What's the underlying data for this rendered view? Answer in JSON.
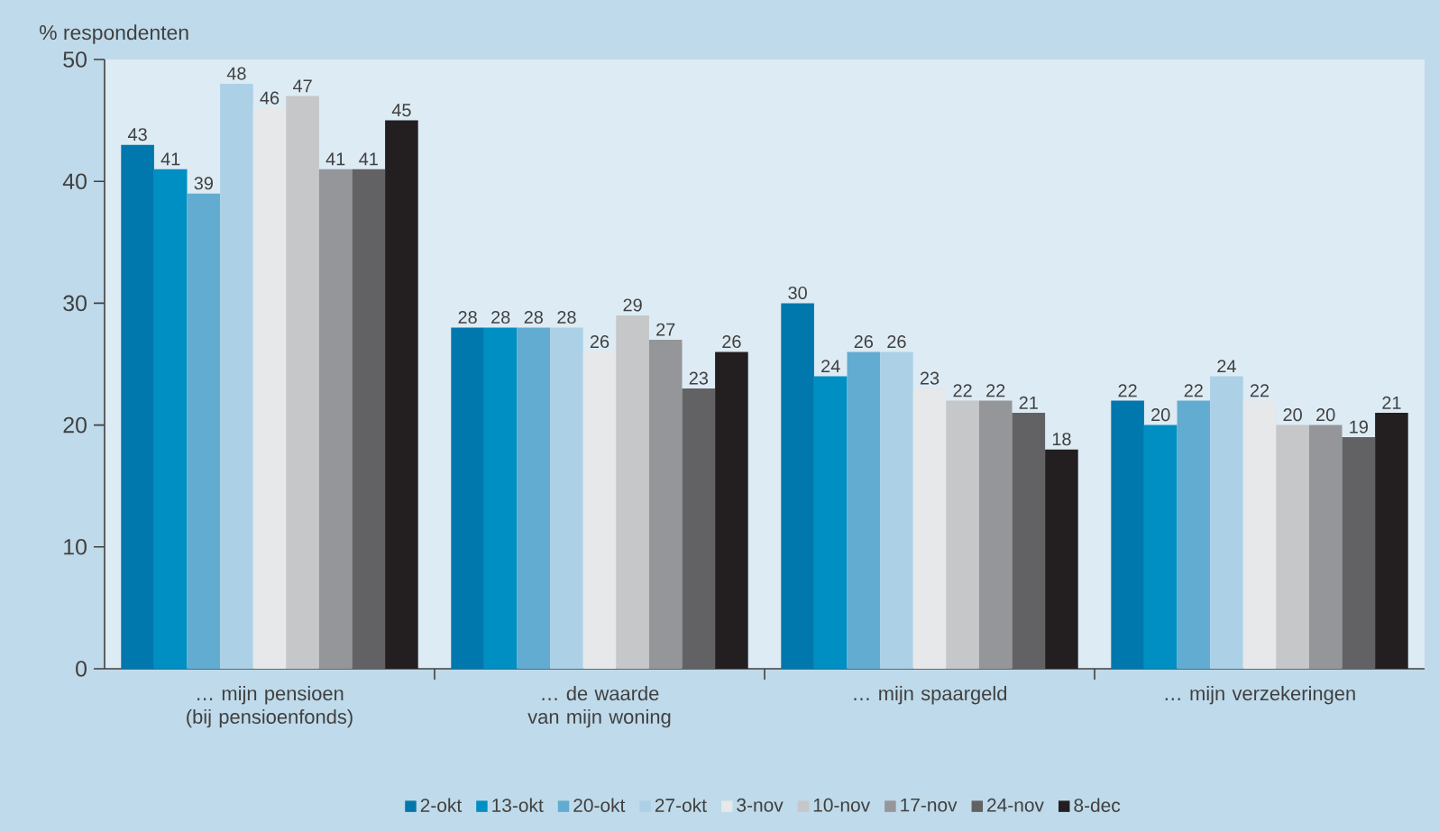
{
  "chart_data": {
    "type": "bar",
    "ylabel": "% respondenten",
    "categories": [
      "… mijn pensioen (bij pensioenfonds)",
      "… de waarde van mijn woning",
      "… mijn spaargeld",
      "… mijn verzekeringen"
    ],
    "series": [
      {
        "name": "2-okt",
        "color": "#0077ad",
        "values": [
          43,
          28,
          30,
          22
        ]
      },
      {
        "name": "13-okt",
        "color": "#008fc2",
        "values": [
          41,
          28,
          24,
          20
        ]
      },
      {
        "name": "20-okt",
        "color": "#63acd1",
        "values": [
          39,
          28,
          26,
          22
        ]
      },
      {
        "name": "27-okt",
        "color": "#acd0e6",
        "values": [
          48,
          28,
          26,
          24
        ]
      },
      {
        "name": "3-nov",
        "color": "#e6e8ea",
        "values": [
          46,
          26,
          23,
          22
        ]
      },
      {
        "name": "10-nov",
        "color": "#c6c7c9",
        "values": [
          47,
          29,
          22,
          20
        ]
      },
      {
        "name": "17-nov",
        "color": "#959699",
        "values": [
          41,
          27,
          22,
          20
        ]
      },
      {
        "name": "24-nov",
        "color": "#626264",
        "values": [
          41,
          23,
          21,
          19
        ]
      },
      {
        "name": "8-dec",
        "color": "#231f20",
        "values": [
          45,
          26,
          18,
          21
        ]
      }
    ],
    "ylim": [
      0,
      50
    ],
    "yticks": [
      0,
      10,
      20,
      30,
      40,
      50
    ],
    "data_labels": true,
    "legend": "bottom"
  }
}
